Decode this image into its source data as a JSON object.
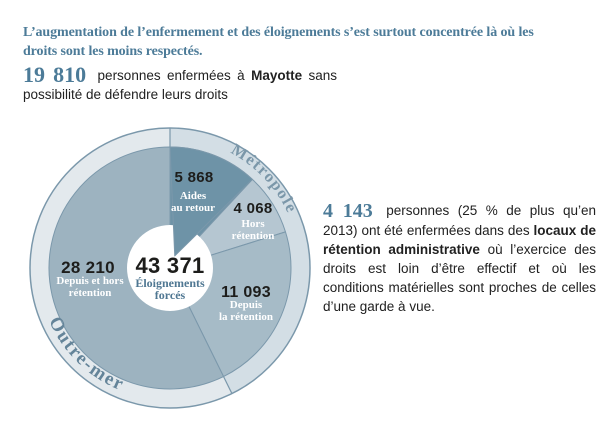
{
  "headline": {
    "line1": "L’augmentation de l’enfermement et des éloignements s’est surtout concentrée là où les",
    "line2": "droits sont les moins respectés."
  },
  "stat_mayotte": {
    "number": "19 810",
    "t1": " personnes enfermées à ",
    "bold": "Mayotte",
    "t2": " sans possibilité de défendre leurs droits"
  },
  "stat_lra": {
    "number": "4 143",
    "t1": " personnes (25 % de plus qu’en 2013) ont été enfermées dans des ",
    "bold": "locaux de rétention administrative",
    "t2": " où l’exercice des droits est loin d’être effectif et où les conditions matérielles sont proches de celles d’une garde à vue."
  },
  "chart_data": {
    "type": "pie",
    "start_angle_deg": 0,
    "direction": "clockwise",
    "total": 49239,
    "center": {
      "value": 43371,
      "value_label": "43 371",
      "label_lines": [
        "Éloignements",
        "forcés"
      ]
    },
    "segments": [
      {
        "id": "aides-au-retour",
        "value": 5868,
        "value_label": "5 868",
        "label_lines": [
          "Aides",
          "au retour"
        ],
        "color": "#6e93a7",
        "overlay_center": true
      },
      {
        "id": "hors-retention",
        "value": 4068,
        "value_label": "4 068",
        "label_lines": [
          "Hors",
          "rétention"
        ],
        "color": "#b5c6d1"
      },
      {
        "id": "depuis-la-retention",
        "value": 11093,
        "value_label": "11 093",
        "label_lines": [
          "Depuis",
          "la rétention"
        ],
        "color": "#a6bbc7"
      },
      {
        "id": "depuis-et-hors-retention",
        "value": 28210,
        "value_label": "28 210",
        "label_lines": [
          "Depuis et hors",
          "rétention"
        ],
        "color": "#9db3c0"
      }
    ],
    "ring": {
      "metropole": {
        "label": "Métropole",
        "covers_segments": [
          "aides-au-retour",
          "hors-retention",
          "depuis-la-retention"
        ],
        "color": "#d3dee5",
        "label_color": "#7b97a9"
      },
      "outre_mer": {
        "label": "Outre-mer",
        "covers_segments": [
          "depuis-et-hors-retention"
        ],
        "color": "#e3e9ed",
        "label_color": "#648499"
      }
    },
    "outline_color": "#7b98ab"
  },
  "colors": {
    "accent_text": "#4c7b98",
    "body_text": "#212121",
    "number_black": "#1d1d1b",
    "white_label": "#ffffff",
    "center_label": "#4f7792"
  }
}
